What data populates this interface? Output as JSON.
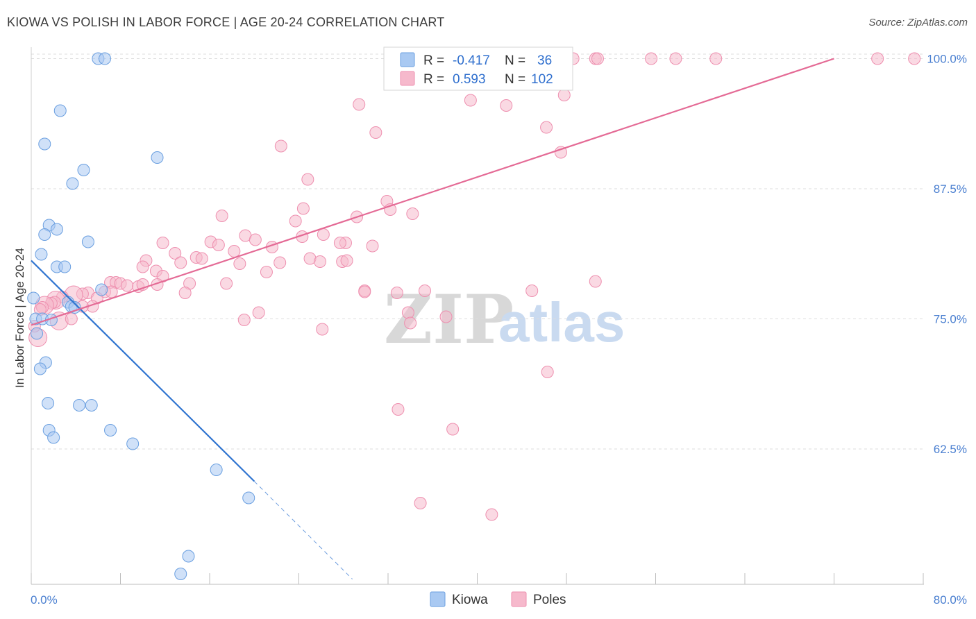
{
  "header": {
    "title": "KIOWA VS POLISH IN LABOR FORCE | AGE 20-24 CORRELATION CHART",
    "source": "Source: ZipAtlas.com"
  },
  "watermark": {
    "zip": "ZIP",
    "atlas": "atlas"
  },
  "legend": {
    "rows": [
      {
        "r_label": "R =",
        "r_value": "-0.417",
        "n_label": "N =",
        "n_value": "36",
        "color": "#a9c9f2"
      },
      {
        "r_label": "R =",
        "r_value": "0.593",
        "n_label": "N =",
        "n_value": "102",
        "color": "#f6b9cc"
      }
    ]
  },
  "bottom_legend": {
    "items": [
      {
        "label": "Kiowa",
        "color": "#a9c9f2"
      },
      {
        "label": "Poles",
        "color": "#f6b9cc"
      }
    ]
  },
  "chart_data": {
    "type": "scatter",
    "title": "KIOWA VS POLISH IN LABOR FORCE | AGE 20-24 CORRELATION CHART",
    "xlabel": "",
    "ylabel": "In Labor Force | Age 20-24",
    "xlim": [
      0,
      80
    ],
    "ylim": [
      49.5,
      101.5
    ],
    "x_tick_labels": [
      "0.0%",
      "80.0%"
    ],
    "y_ticks": [
      62.5,
      75.0,
      87.5,
      100.0
    ],
    "y_tick_labels": [
      "62.5%",
      "75.0%",
      "87.5%",
      "100.0%"
    ],
    "grid": true,
    "series": [
      {
        "name": "Kiowa",
        "color": "#a9c9f2",
        "stroke": "#6a9fe0",
        "trend": {
          "x": [
            0.0,
            20.0
          ],
          "y": [
            80.6,
            59.4
          ],
          "dashed_to": [
            28.8,
            50.0
          ],
          "color": "#2f74d0"
        },
        "points": [
          [
            6.0,
            100.0
          ],
          [
            6.6,
            100.0
          ],
          [
            2.6,
            95.0
          ],
          [
            1.2,
            91.8
          ],
          [
            11.3,
            90.5
          ],
          [
            4.7,
            89.3
          ],
          [
            3.7,
            88.0
          ],
          [
            1.6,
            84.0
          ],
          [
            2.3,
            83.6
          ],
          [
            1.2,
            83.1
          ],
          [
            5.1,
            82.4
          ],
          [
            0.9,
            81.2
          ],
          [
            2.3,
            80.0
          ],
          [
            3.0,
            80.0
          ],
          [
            0.2,
            77.0
          ],
          [
            6.3,
            77.8
          ],
          [
            3.3,
            76.6
          ],
          [
            3.6,
            76.2
          ],
          [
            3.9,
            76.1
          ],
          [
            0.4,
            75.0
          ],
          [
            1.0,
            75.0
          ],
          [
            1.8,
            74.9
          ],
          [
            0.5,
            73.6
          ],
          [
            1.3,
            70.8
          ],
          [
            0.8,
            70.2
          ],
          [
            1.5,
            66.9
          ],
          [
            4.3,
            66.7
          ],
          [
            5.4,
            66.7
          ],
          [
            1.6,
            64.3
          ],
          [
            7.1,
            64.3
          ],
          [
            2.0,
            63.6
          ],
          [
            9.1,
            63.0
          ],
          [
            16.6,
            60.5
          ],
          [
            19.5,
            57.8
          ],
          [
            14.1,
            52.2
          ],
          [
            13.4,
            50.5
          ]
        ]
      },
      {
        "name": "Poles",
        "color": "#f6b9cc",
        "stroke": "#ee8faf",
        "trend": {
          "x": [
            0.0,
            72.0
          ],
          "y": [
            74.4,
            100.0
          ],
          "color": "#e46a95"
        },
        "points": [
          [
            36.3,
            100.0
          ],
          [
            36.7,
            100.0
          ],
          [
            37.3,
            100.0
          ],
          [
            42.1,
            100.0
          ],
          [
            42.6,
            100.0
          ],
          [
            48.6,
            100.0
          ],
          [
            50.6,
            100.0
          ],
          [
            50.8,
            100.0
          ],
          [
            55.6,
            100.0
          ],
          [
            57.8,
            100.0
          ],
          [
            61.4,
            100.0
          ],
          [
            75.9,
            100.0
          ],
          [
            79.2,
            100.0
          ],
          [
            47.8,
            96.5
          ],
          [
            29.4,
            95.6
          ],
          [
            39.4,
            96.0
          ],
          [
            42.6,
            95.5
          ],
          [
            46.2,
            93.4
          ],
          [
            30.9,
            92.9
          ],
          [
            22.4,
            91.6
          ],
          [
            47.5,
            91.0
          ],
          [
            24.8,
            88.4
          ],
          [
            31.9,
            86.3
          ],
          [
            24.4,
            85.6
          ],
          [
            32.2,
            85.5
          ],
          [
            34.2,
            85.1
          ],
          [
            29.2,
            84.8
          ],
          [
            17.1,
            84.9
          ],
          [
            23.7,
            84.4
          ],
          [
            19.2,
            83.0
          ],
          [
            26.2,
            83.1
          ],
          [
            24.3,
            82.9
          ],
          [
            28.2,
            82.3
          ],
          [
            20.1,
            82.6
          ],
          [
            16.1,
            82.4
          ],
          [
            11.8,
            82.3
          ],
          [
            27.7,
            82.3
          ],
          [
            16.8,
            82.1
          ],
          [
            30.6,
            82.0
          ],
          [
            21.6,
            81.9
          ],
          [
            18.2,
            81.5
          ],
          [
            12.9,
            81.3
          ],
          [
            25.0,
            80.8
          ],
          [
            14.8,
            80.9
          ],
          [
            15.3,
            80.8
          ],
          [
            10.3,
            80.6
          ],
          [
            13.4,
            80.4
          ],
          [
            22.3,
            80.4
          ],
          [
            25.9,
            80.5
          ],
          [
            27.9,
            80.5
          ],
          [
            28.3,
            80.6
          ],
          [
            18.7,
            80.3
          ],
          [
            21.1,
            79.5
          ],
          [
            11.2,
            79.6
          ],
          [
            11.8,
            79.1
          ],
          [
            7.1,
            78.5
          ],
          [
            7.6,
            78.5
          ],
          [
            8.0,
            78.4
          ],
          [
            8.6,
            78.2
          ],
          [
            9.6,
            78.1
          ],
          [
            10.0,
            78.3
          ],
          [
            11.3,
            78.3
          ],
          [
            14.2,
            78.4
          ],
          [
            17.5,
            78.4
          ],
          [
            6.6,
            77.6
          ],
          [
            7.2,
            77.6
          ],
          [
            5.1,
            77.5
          ],
          [
            4.6,
            77.4
          ],
          [
            13.8,
            77.5
          ],
          [
            29.9,
            77.7
          ],
          [
            29.9,
            77.6
          ],
          [
            32.8,
            77.5
          ],
          [
            35.3,
            77.7
          ],
          [
            44.9,
            77.7
          ],
          [
            50.6,
            78.6
          ],
          [
            3.8,
            77.3
          ],
          [
            2.8,
            77.1
          ],
          [
            5.9,
            77.0
          ],
          [
            2.2,
            76.8
          ],
          [
            2.1,
            76.6
          ],
          [
            1.8,
            76.5
          ],
          [
            1.2,
            76.3
          ],
          [
            1.0,
            76.1
          ],
          [
            0.8,
            75.9
          ],
          [
            5.5,
            76.2
          ],
          [
            4.6,
            76.2
          ],
          [
            20.4,
            75.6
          ],
          [
            33.8,
            75.6
          ],
          [
            37.2,
            75.2
          ],
          [
            19.1,
            74.9
          ],
          [
            2.5,
            74.8
          ],
          [
            34.0,
            74.6
          ],
          [
            26.1,
            74.0
          ],
          [
            0.6,
            73.2
          ],
          [
            46.3,
            69.9
          ],
          [
            32.9,
            66.3
          ],
          [
            37.8,
            64.4
          ],
          [
            34.9,
            57.3
          ],
          [
            41.3,
            56.2
          ],
          [
            10.0,
            80.0
          ],
          [
            0.3,
            74.3
          ],
          [
            3.6,
            75.0
          ]
        ]
      }
    ]
  }
}
